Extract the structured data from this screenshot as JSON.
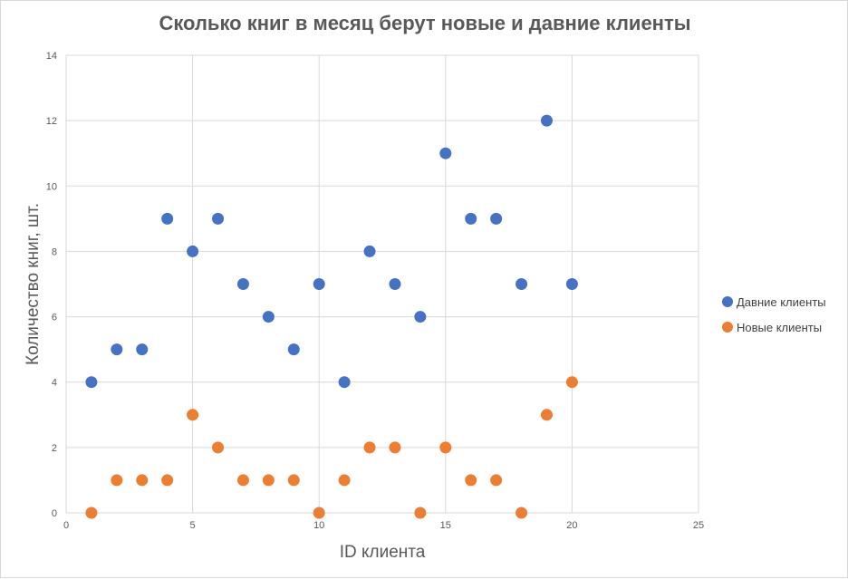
{
  "chart_data": {
    "type": "scatter",
    "title": "Сколько книг в месяц берут новые и давние клиенты",
    "xlabel": "ID клиента",
    "ylabel": "Количество книг, шт.",
    "xlim": [
      0,
      25
    ],
    "ylim": [
      0,
      14
    ],
    "x_ticks": [
      "0",
      "5",
      "10",
      "15",
      "20",
      "25"
    ],
    "y_ticks": [
      "0",
      "2",
      "4",
      "6",
      "8",
      "10",
      "12",
      "14"
    ],
    "grid": true,
    "legend_position": "right",
    "series": [
      {
        "name": "Давние клиенты",
        "color": "#4472C4",
        "x": [
          1,
          2,
          3,
          4,
          5,
          6,
          7,
          8,
          9,
          10,
          11,
          12,
          13,
          14,
          15,
          16,
          17,
          18,
          19,
          20
        ],
        "y": [
          4,
          5,
          5,
          9,
          8,
          9,
          7,
          6,
          5,
          7,
          4,
          8,
          7,
          6,
          11,
          9,
          9,
          7,
          12,
          7
        ]
      },
      {
        "name": "Новые клиенты",
        "color": "#ED7D31",
        "x": [
          1,
          2,
          3,
          4,
          5,
          6,
          7,
          8,
          9,
          10,
          11,
          12,
          13,
          14,
          15,
          16,
          17,
          18,
          19,
          20
        ],
        "y": [
          0,
          1,
          1,
          1,
          3,
          2,
          1,
          1,
          1,
          0,
          1,
          2,
          2,
          0,
          2,
          1,
          1,
          0,
          3,
          4
        ]
      }
    ]
  }
}
